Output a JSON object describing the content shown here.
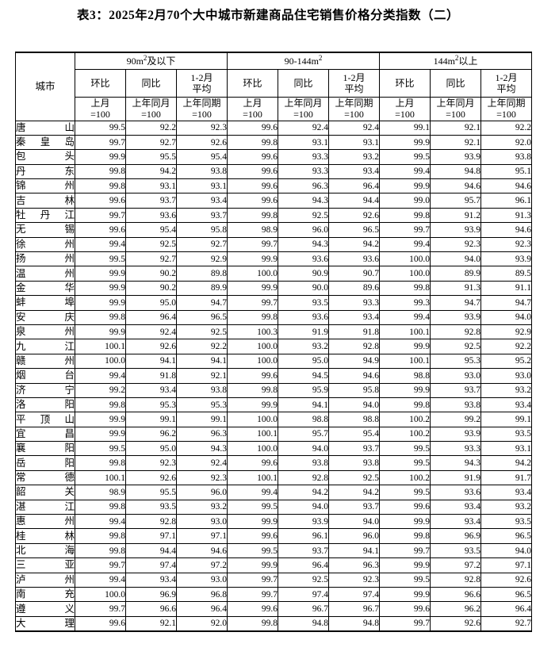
{
  "title": "表3：2025年2月70个大中城市新建商品住宅销售价格分类指数（二）",
  "table": {
    "city_header": "城市",
    "groups": [
      {
        "label_pre": "90m",
        "label_sup": "2",
        "label_post": "及以下"
      },
      {
        "label_pre": "90-144m",
        "label_sup": "2",
        "label_post": ""
      },
      {
        "label_pre": "144m",
        "label_sup": "2",
        "label_post": "以上"
      }
    ],
    "sub_headers": [
      {
        "line1": "环比",
        "line2": ""
      },
      {
        "line1": "同比",
        "line2": ""
      },
      {
        "line1": "1-2月",
        "line2": "平均"
      }
    ],
    "base_headers": [
      {
        "line1": "上月",
        "line2": "=100"
      },
      {
        "line1": "上年同月",
        "line2": "=100"
      },
      {
        "line1": "上年同期",
        "line2": "=100"
      }
    ],
    "rows": [
      {
        "city": "唐山",
        "values": [
          "99.5",
          "92.2",
          "92.3",
          "99.6",
          "92.4",
          "92.4",
          "99.1",
          "92.1",
          "92.2"
        ]
      },
      {
        "city": "秦皇岛",
        "values": [
          "99.7",
          "92.7",
          "92.6",
          "99.8",
          "93.1",
          "93.1",
          "99.9",
          "92.1",
          "92.0"
        ]
      },
      {
        "city": "包头",
        "values": [
          "99.9",
          "95.5",
          "95.4",
          "99.6",
          "93.3",
          "93.2",
          "99.5",
          "93.9",
          "93.8"
        ]
      },
      {
        "city": "丹东",
        "values": [
          "99.8",
          "94.2",
          "93.8",
          "99.6",
          "93.3",
          "93.4",
          "99.4",
          "94.8",
          "95.1"
        ]
      },
      {
        "city": "锦州",
        "values": [
          "99.8",
          "93.1",
          "93.1",
          "99.6",
          "96.3",
          "96.4",
          "99.9",
          "94.6",
          "94.6"
        ]
      },
      {
        "city": "吉林",
        "values": [
          "99.6",
          "93.7",
          "93.4",
          "99.6",
          "94.3",
          "94.4",
          "99.0",
          "95.7",
          "96.1"
        ]
      },
      {
        "city": "牡丹江",
        "values": [
          "99.7",
          "93.6",
          "93.7",
          "99.8",
          "92.5",
          "92.6",
          "99.8",
          "91.2",
          "91.3"
        ]
      },
      {
        "city": "无锡",
        "values": [
          "99.6",
          "95.4",
          "95.8",
          "98.9",
          "96.0",
          "96.5",
          "99.7",
          "93.9",
          "94.6"
        ]
      },
      {
        "city": "徐州",
        "values": [
          "99.4",
          "92.5",
          "92.7",
          "99.7",
          "94.3",
          "94.2",
          "99.4",
          "92.3",
          "92.3"
        ]
      },
      {
        "city": "扬州",
        "values": [
          "99.5",
          "92.7",
          "92.9",
          "99.9",
          "93.6",
          "93.6",
          "100.0",
          "94.0",
          "93.9"
        ]
      },
      {
        "city": "温州",
        "values": [
          "99.9",
          "90.2",
          "89.8",
          "100.0",
          "90.9",
          "90.7",
          "100.0",
          "89.9",
          "89.5"
        ]
      },
      {
        "city": "金华",
        "values": [
          "99.9",
          "90.2",
          "89.9",
          "99.9",
          "90.0",
          "89.6",
          "99.8",
          "91.3",
          "91.1"
        ]
      },
      {
        "city": "蚌埠",
        "values": [
          "99.9",
          "95.0",
          "94.7",
          "99.7",
          "93.5",
          "93.3",
          "99.3",
          "94.7",
          "94.7"
        ]
      },
      {
        "city": "安庆",
        "values": [
          "99.8",
          "96.4",
          "96.5",
          "99.8",
          "93.6",
          "93.4",
          "99.4",
          "93.9",
          "94.0"
        ]
      },
      {
        "city": "泉州",
        "values": [
          "99.9",
          "92.4",
          "92.5",
          "100.3",
          "91.9",
          "91.8",
          "100.1",
          "92.8",
          "92.9"
        ]
      },
      {
        "city": "九江",
        "values": [
          "100.1",
          "92.6",
          "92.2",
          "100.0",
          "93.2",
          "92.8",
          "99.9",
          "92.5",
          "92.2"
        ]
      },
      {
        "city": "赣州",
        "values": [
          "100.0",
          "94.1",
          "94.1",
          "100.0",
          "95.0",
          "94.9",
          "100.1",
          "95.3",
          "95.2"
        ]
      },
      {
        "city": "烟台",
        "values": [
          "99.4",
          "91.8",
          "92.1",
          "99.6",
          "94.5",
          "94.6",
          "98.8",
          "93.0",
          "93.0"
        ]
      },
      {
        "city": "济宁",
        "values": [
          "99.2",
          "93.4",
          "93.8",
          "99.8",
          "95.9",
          "95.8",
          "99.9",
          "93.7",
          "93.2"
        ]
      },
      {
        "city": "洛阳",
        "values": [
          "99.8",
          "95.3",
          "95.3",
          "99.9",
          "94.1",
          "94.0",
          "99.8",
          "93.8",
          "93.4"
        ]
      },
      {
        "city": "平顶山",
        "values": [
          "99.9",
          "99.1",
          "99.1",
          "100.0",
          "98.8",
          "98.8",
          "100.2",
          "99.2",
          "99.1"
        ]
      },
      {
        "city": "宜昌",
        "values": [
          "99.9",
          "96.2",
          "96.3",
          "100.1",
          "95.7",
          "95.4",
          "100.2",
          "93.9",
          "93.5"
        ]
      },
      {
        "city": "襄阳",
        "values": [
          "99.5",
          "95.0",
          "94.3",
          "100.0",
          "94.0",
          "93.7",
          "99.5",
          "93.3",
          "93.1"
        ]
      },
      {
        "city": "岳阳",
        "values": [
          "99.8",
          "92.3",
          "92.4",
          "99.6",
          "93.8",
          "93.8",
          "99.5",
          "94.3",
          "94.2"
        ]
      },
      {
        "city": "常德",
        "values": [
          "100.1",
          "92.6",
          "92.3",
          "100.1",
          "92.8",
          "92.5",
          "100.2",
          "91.9",
          "91.7"
        ]
      },
      {
        "city": "韶关",
        "values": [
          "98.9",
          "95.5",
          "96.0",
          "99.4",
          "94.2",
          "94.2",
          "99.5",
          "93.6",
          "93.4"
        ]
      },
      {
        "city": "湛江",
        "values": [
          "99.8",
          "93.5",
          "93.2",
          "99.5",
          "94.0",
          "93.7",
          "99.6",
          "93.4",
          "93.2"
        ]
      },
      {
        "city": "惠州",
        "values": [
          "99.4",
          "92.8",
          "93.0",
          "99.9",
          "93.9",
          "94.0",
          "99.9",
          "93.4",
          "93.5"
        ]
      },
      {
        "city": "桂林",
        "values": [
          "99.8",
          "97.1",
          "97.1",
          "99.6",
          "96.1",
          "96.0",
          "99.8",
          "96.9",
          "96.5"
        ]
      },
      {
        "city": "北海",
        "values": [
          "99.8",
          "94.4",
          "94.6",
          "99.5",
          "93.7",
          "94.1",
          "99.7",
          "93.5",
          "94.0"
        ]
      },
      {
        "city": "三亚",
        "values": [
          "99.7",
          "97.4",
          "97.2",
          "99.9",
          "96.4",
          "96.3",
          "99.9",
          "97.2",
          "97.1"
        ]
      },
      {
        "city": "泸州",
        "values": [
          "99.4",
          "93.4",
          "93.0",
          "99.7",
          "92.5",
          "92.3",
          "99.5",
          "92.8",
          "92.6"
        ]
      },
      {
        "city": "南充",
        "values": [
          "100.0",
          "96.9",
          "96.8",
          "99.7",
          "97.4",
          "97.4",
          "99.9",
          "96.6",
          "96.5"
        ]
      },
      {
        "city": "遵义",
        "values": [
          "99.7",
          "96.6",
          "96.4",
          "99.6",
          "96.7",
          "96.7",
          "99.6",
          "96.2",
          "96.4"
        ]
      },
      {
        "city": "大理",
        "values": [
          "99.6",
          "92.1",
          "92.0",
          "99.8",
          "94.8",
          "94.8",
          "99.7",
          "92.6",
          "92.7"
        ]
      }
    ]
  }
}
